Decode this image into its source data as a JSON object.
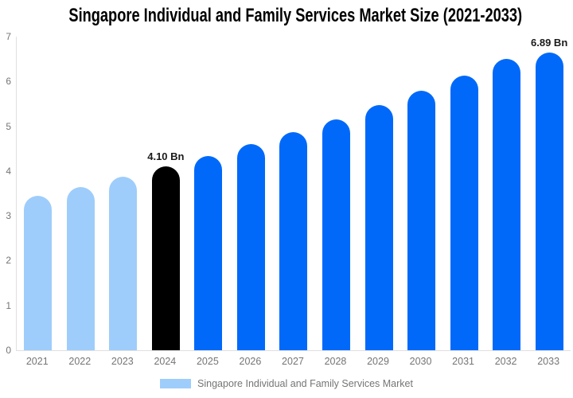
{
  "colors": {
    "historical": "#9ECDFB",
    "base_year": "#000000",
    "forecast": "#0069FA",
    "axis_line": "#E0E0E0",
    "muted_text": "#757575",
    "label_text": "#1A1A1A"
  },
  "legend": {
    "label": "Singapore Individual and Family Services Market",
    "swatch_color": "#9ECDFB"
  },
  "chart_data": {
    "type": "bar",
    "title": "Singapore Individual and Family Services Market Size (2021-2033)",
    "unit": "Bn",
    "categories": [
      "2021",
      "2022",
      "2023",
      "2024",
      "2025",
      "2026",
      "2027",
      "2028",
      "2029",
      "2030",
      "2031",
      "2032",
      "2033"
    ],
    "values": [
      3.45,
      3.65,
      3.87,
      4.1,
      4.34,
      4.6,
      4.87,
      5.16,
      5.47,
      5.79,
      6.13,
      6.5,
      6.89
    ],
    "bar_segments": [
      "historical",
      "historical",
      "historical",
      "base_year",
      "forecast",
      "forecast",
      "forecast",
      "forecast",
      "forecast",
      "forecast",
      "forecast",
      "forecast",
      "forecast"
    ],
    "data_labels": [
      {
        "category": "2024",
        "text": "4.10 Bn"
      },
      {
        "category": "2033",
        "text": "6.89 Bn"
      }
    ],
    "xlabel": "",
    "ylabel": "",
    "ylim": [
      0,
      7
    ],
    "y_ticks": [
      0,
      1,
      2,
      3,
      4,
      5,
      6,
      7
    ],
    "grid": false,
    "legend_position": "bottom",
    "legend_label": "Singapore Individual and Family Services Market"
  }
}
